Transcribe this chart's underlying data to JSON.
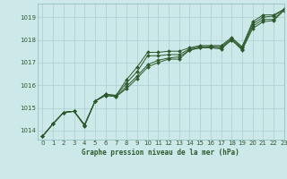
{
  "title": "Graphe pression niveau de la mer (hPa)",
  "background_color": "#cde8e8",
  "grid_color": "#aacece",
  "line_color": "#2d5a2d",
  "text_color": "#2d5a2d",
  "xlim": [
    -0.5,
    23
  ],
  "ylim": [
    1013.6,
    1019.6
  ],
  "yticks": [
    1014,
    1015,
    1016,
    1017,
    1018,
    1019
  ],
  "xticks": [
    0,
    1,
    2,
    3,
    4,
    5,
    6,
    7,
    8,
    9,
    10,
    11,
    12,
    13,
    14,
    15,
    16,
    17,
    18,
    19,
    20,
    21,
    22,
    23
  ],
  "series": [
    [
      1013.75,
      1014.3,
      1014.8,
      1014.85,
      1014.2,
      1015.3,
      1015.55,
      1015.5,
      1015.85,
      1016.3,
      1016.8,
      1017.0,
      1017.15,
      1017.15,
      1017.55,
      1017.65,
      1017.65,
      1017.6,
      1018.0,
      1017.55,
      1018.5,
      1018.8,
      1018.85,
      1019.3
    ],
    [
      1013.75,
      1014.3,
      1014.8,
      1014.85,
      1014.25,
      1015.3,
      1015.55,
      1015.5,
      1015.95,
      1016.4,
      1016.9,
      1017.1,
      1017.2,
      1017.25,
      1017.55,
      1017.65,
      1017.7,
      1017.65,
      1018.0,
      1017.6,
      1018.6,
      1018.9,
      1018.9,
      1019.35
    ],
    [
      1013.75,
      1014.3,
      1014.8,
      1014.85,
      1014.25,
      1015.3,
      1015.6,
      1015.55,
      1016.1,
      1016.6,
      1017.3,
      1017.3,
      1017.35,
      1017.35,
      1017.6,
      1017.7,
      1017.7,
      1017.7,
      1018.05,
      1017.65,
      1018.7,
      1019.0,
      1019.05,
      1019.35
    ],
    [
      1013.75,
      1014.3,
      1014.8,
      1014.85,
      1014.25,
      1015.3,
      1015.6,
      1015.55,
      1016.25,
      1016.8,
      1017.45,
      1017.45,
      1017.5,
      1017.5,
      1017.65,
      1017.75,
      1017.75,
      1017.75,
      1018.1,
      1017.7,
      1018.8,
      1019.1,
      1019.1,
      1019.35
    ]
  ]
}
